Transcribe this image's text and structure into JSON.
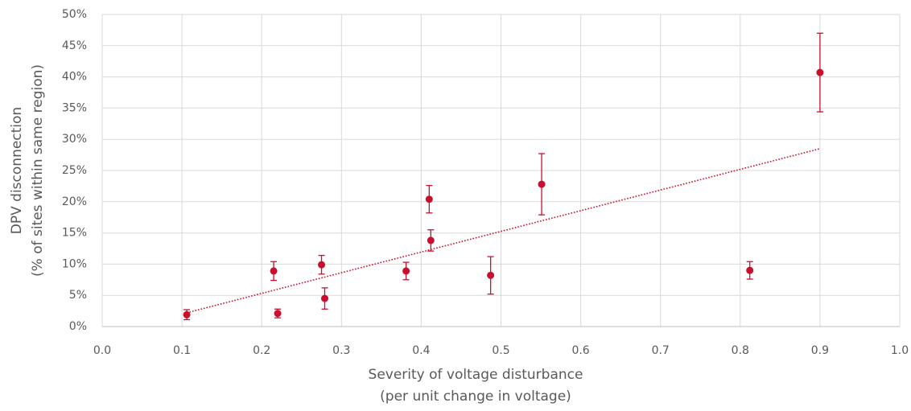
{
  "chart_data": {
    "type": "scatter",
    "x_label": [
      "Severity of voltage disturbance",
      "(per unit change in voltage)"
    ],
    "y_label": [
      "DPV disconnection",
      "(% of sites within same region)"
    ],
    "series": [
      {
        "color": "#c8102e",
        "x": [
          0.106,
          0.215,
          0.22,
          0.275,
          0.279,
          0.381,
          0.41,
          0.412,
          0.487,
          0.551,
          0.812,
          0.9
        ],
        "values": [
          1.9,
          8.9,
          2.1,
          9.9,
          4.5,
          8.9,
          20.4,
          13.8,
          8.2,
          22.8,
          9.0,
          40.7
        ],
        "errors": [
          0.8,
          1.5,
          0.7,
          1.5,
          1.7,
          1.4,
          2.2,
          1.7,
          3.0,
          4.9,
          1.4,
          6.3
        ]
      }
    ],
    "trendline": {
      "color": "#c8102e",
      "x": [
        0.106,
        0.9
      ],
      "values": [
        2.2,
        28.5
      ]
    },
    "xlim": [
      0,
      1
    ],
    "xticks": [
      {
        "value": 0,
        "label": "0.0"
      },
      0.1,
      0.2,
      0.3,
      0.4,
      0.5,
      0.6,
      0.7,
      0.8,
      0.9,
      {
        "value": 1,
        "label": "1.0"
      }
    ],
    "ylim": [
      0,
      50
    ],
    "yticks": [
      {
        "value": 0,
        "label": "0%"
      },
      {
        "value": 5,
        "label": "5%"
      },
      {
        "value": 10,
        "label": "10%"
      },
      {
        "value": 15,
        "label": "15%"
      },
      {
        "value": 20,
        "label": "20%"
      },
      {
        "value": 25,
        "label": "25%"
      },
      {
        "value": 30,
        "label": "30%"
      },
      {
        "value": 35,
        "label": "35%"
      },
      {
        "value": 40,
        "label": "40%"
      },
      {
        "value": 45,
        "label": "45%"
      },
      {
        "value": 50,
        "label": "50%"
      }
    ],
    "grid": true
  }
}
